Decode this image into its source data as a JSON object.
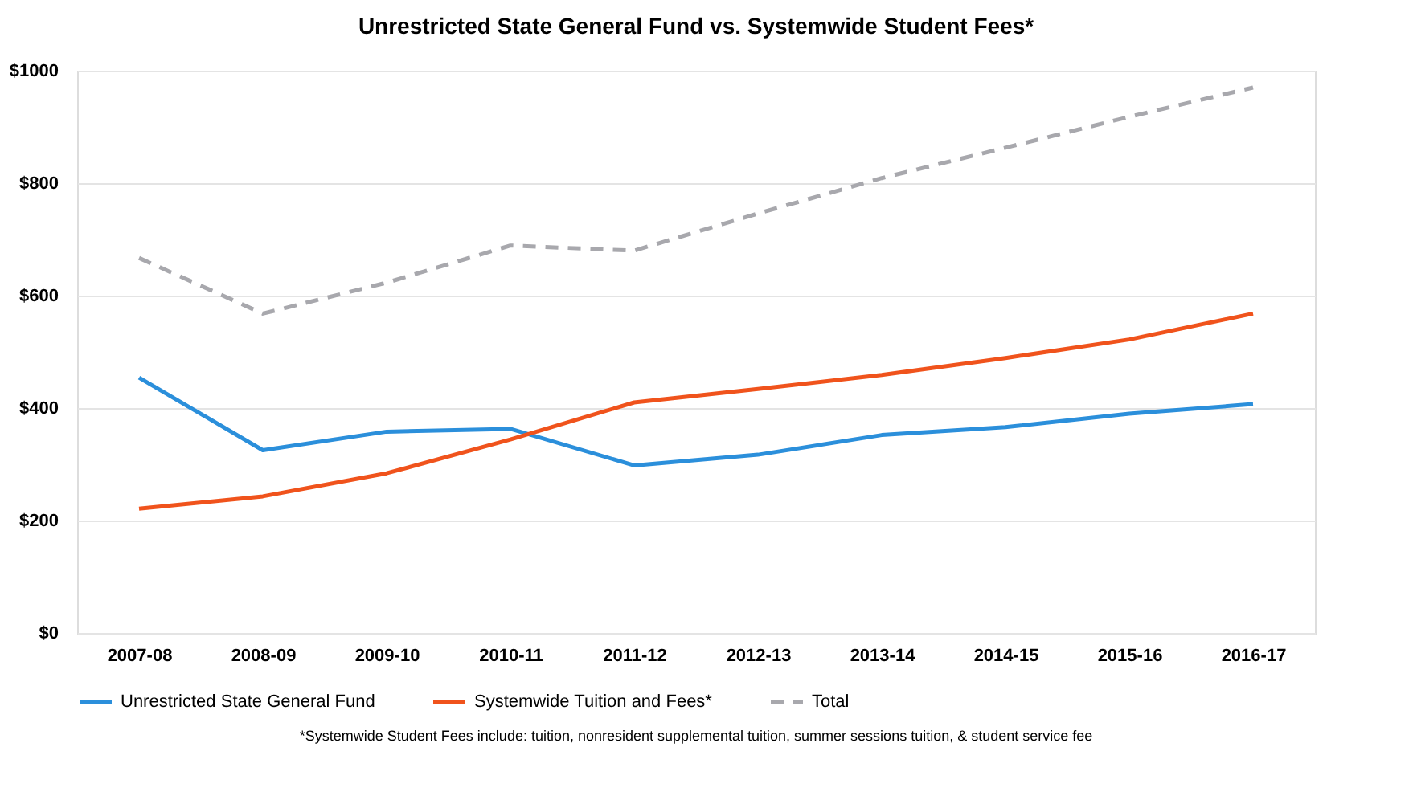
{
  "chart_data": {
    "type": "line",
    "title": "Unrestricted State General Fund vs. Systemwide Student Fees*",
    "categories": [
      "2007-08",
      "2008-09",
      "2009-10",
      "2010-11",
      "2011-12",
      "2012-13",
      "2013-14",
      "2014-15",
      "2015-16",
      "2016-17"
    ],
    "series": [
      {
        "name": "Unrestricted State General Fund",
        "color": "#2b8fdb",
        "values": [
          454,
          325,
          358,
          363,
          298,
          317,
          352,
          366,
          390,
          407
        ]
      },
      {
        "name": "Systemwide Tuition and Fees*",
        "color": "#f0531c",
        "values": [
          221,
          243,
          284,
          344,
          410,
          434,
          459,
          489,
          522,
          568
        ]
      },
      {
        "name": "Total",
        "color": "#a8a8ad",
        "line_style": "dashed",
        "values": [
          667,
          568,
          623,
          689,
          680,
          746,
          809,
          863,
          918,
          970
        ]
      }
    ],
    "ylim": [
      0,
      1000
    ],
    "yticks": [
      {
        "value": 0,
        "label": "$0"
      },
      {
        "value": 200,
        "label": "$200"
      },
      {
        "value": 400,
        "label": "$400"
      },
      {
        "value": 600,
        "label": "$600"
      },
      {
        "value": 800,
        "label": "$800"
      },
      {
        "value": 1000,
        "label": "$1000"
      }
    ],
    "grid": "y",
    "legend": "bottom",
    "marker": "none",
    "annotations": [
      "*Systemwide Student Fees include: tuition, nonresident supplemental tuition, summer sessions tuition, & student service fee"
    ]
  }
}
